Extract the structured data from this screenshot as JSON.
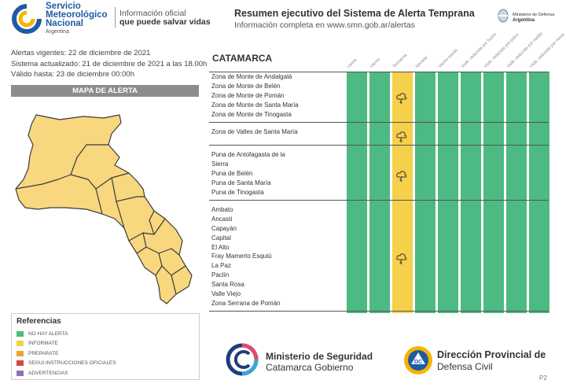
{
  "header": {
    "org_line1": "Servicio",
    "org_line2": "Meteorológico",
    "org_line3": "Nacional",
    "org_country": "Argentina",
    "tagline1": "Información oficial",
    "tagline2": "que puede salvar vidas",
    "title": "Resumen ejecutivo del Sistema de Alerta Temprana",
    "subtitle": "Información completa en www.smn.gob.ar/alertas",
    "ministry_line1": "Ministerio de Defensa",
    "ministry_line2": "Argentina"
  },
  "meta": {
    "alerts_valid": "Alertas vigentes: 22 de diciembre de 2021",
    "updated": "Sistema actualizado: 21 de diciembre de 2021 a las 18.00h",
    "valid_until": "Válido hasta: 23 de diciembre 00:00h"
  },
  "map": {
    "title": "MAPA DE ALERTA",
    "fill_color": "#f8d77f",
    "stroke_color": "#3a3a3a"
  },
  "legend": {
    "title": "Referencias",
    "items": [
      {
        "label": "NO HAY ALERTA",
        "color": "#4cba82"
      },
      {
        "label": "INFORMATE",
        "color": "#f5d04a"
      },
      {
        "label": "PREPARATE",
        "color": "#f0a030"
      },
      {
        "label": "SEGUI INSTRUCCIONES OFICIALES",
        "color": "#d9463f"
      },
      {
        "label": "ADVERTENCIAS",
        "color": "#8e70b8"
      }
    ]
  },
  "table": {
    "province": "CATAMARCA",
    "columns": [
      {
        "label": "Lluvia",
        "color": "#4cba82"
      },
      {
        "label": "Viento",
        "color": "#4cba82"
      },
      {
        "label": "Tormenta",
        "color": "#f5d04a"
      },
      {
        "label": "Nevada",
        "color": "#4cba82"
      },
      {
        "label": "Viento zonda",
        "color": "#4cba82"
      },
      {
        "label": "Visib. reducida por humo",
        "color": "#4cba82"
      },
      {
        "label": "Visib. reducida por polvo",
        "color": "#4cba82"
      },
      {
        "label": "Visib. reducida por niebla",
        "color": "#4cba82"
      },
      {
        "label": "Visib. reducida por nieve",
        "color": "#4cba82"
      },
      {
        "label": "Visib. reducida por neblina",
        "color": "#4cba82"
      }
    ],
    "groups": [
      {
        "zones": [
          "Zona de Monte de Andalgalá",
          "Zona de Monte de Belén",
          "Zona de Monte de Pomán",
          "Zona de Monte de Santa María",
          "Zona de Monte de Tinogasta"
        ]
      },
      {
        "zones": [
          "Zona de Valles de Santa María"
        ]
      },
      {
        "zones": [
          "Puna de Antofagasta de la",
          "Sierra",
          "Puna de Belén",
          "Puna de Santa María",
          "Puna de Tinogasta"
        ]
      },
      {
        "zones": [
          "Ambato",
          "Ancasti",
          "Capayán",
          "Capital",
          "El Alto",
          "Fray Mamerto Esquiú",
          "La Paz",
          "Paclín",
          "Santa Rosa",
          "Valle Viejo",
          "Zona Serrana de Pomán"
        ]
      }
    ]
  },
  "footer": {
    "ministry_line1": "Ministerio de Seguridad",
    "ministry_line2": "Catamarca Gobierno",
    "dc_badge": "DC",
    "direction_line1": "Dirección Provincial de",
    "direction_line2": "Defensa Civil",
    "page": "P2"
  }
}
